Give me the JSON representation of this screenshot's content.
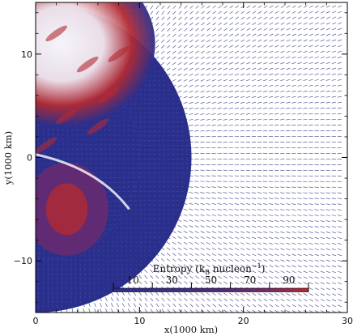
{
  "chart_data": {
    "type": "vector-field",
    "xlabel": "x(1000 km)",
    "ylabel": "y(1000 km)",
    "xlim": [
      0,
      30
    ],
    "ylim": [
      -15,
      15
    ],
    "x_ticks": [
      0,
      10,
      20,
      30
    ],
    "y_ticks": [
      -10,
      0,
      10
    ],
    "x_tick_labels": [
      "0",
      "10",
      "20",
      "30"
    ],
    "y_tick_labels": [
      "−10",
      "0",
      "10"
    ],
    "grid": false,
    "colorbar": {
      "title_text": "Entropy (k",
      "title_sub": "B",
      "title_after_sub": " nucleon",
      "title_sup": "−1",
      "title_close": ")",
      "ticks": [
        10,
        30,
        50,
        70,
        90
      ],
      "tick_labels": [
        "10",
        "30",
        "50",
        "70",
        "90"
      ],
      "range": [
        0,
        100
      ],
      "colormap": [
        "#2b2f8c",
        "#6a2a6e",
        "#b22a32"
      ],
      "placement": "bottom-center"
    },
    "regions": {
      "shock_radius": 15,
      "inner_blue_region_radius": 10,
      "high_entropy_plume_center": [
        2.5,
        11
      ],
      "high_entropy_lower_lobe_center": [
        3,
        -5
      ]
    },
    "colors": {
      "low_entropy": "#2b2f8c",
      "mid_entropy": "#6a2a6e",
      "high_entropy": "#b22a32",
      "outer_arrows": "#3a3f88"
    }
  }
}
